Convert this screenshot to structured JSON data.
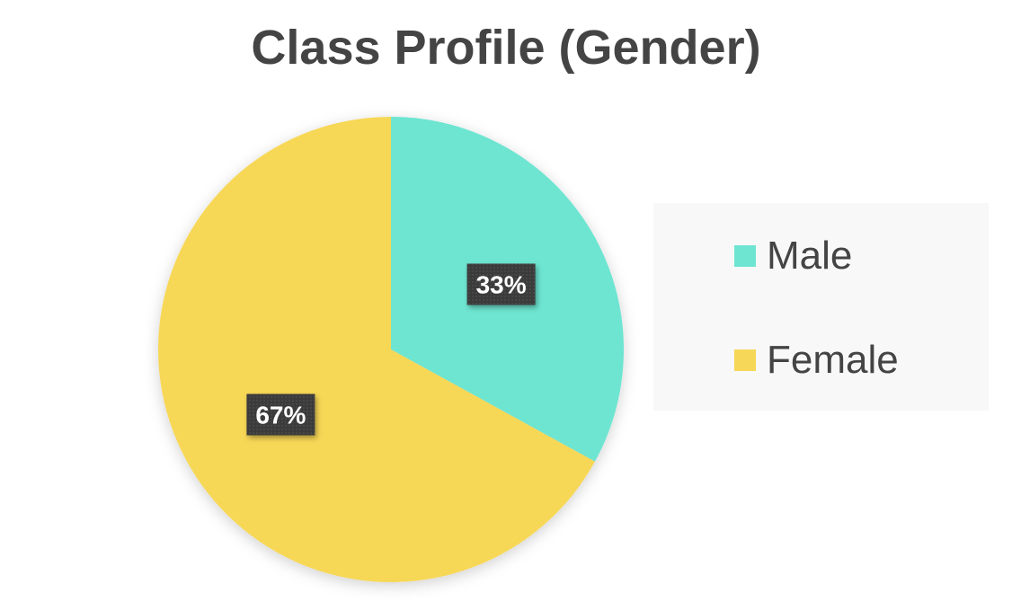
{
  "chart_data": {
    "type": "pie",
    "title": "Class Profile (Gender)",
    "categories": [
      "Male",
      "Female"
    ],
    "values": [
      33,
      67
    ],
    "data_labels": [
      "33%",
      "67%"
    ],
    "colors": [
      "#6ee5d1",
      "#f7d757"
    ],
    "legend_position": "right",
    "start_angle": "12 o'clock",
    "direction": "clockwise"
  }
}
